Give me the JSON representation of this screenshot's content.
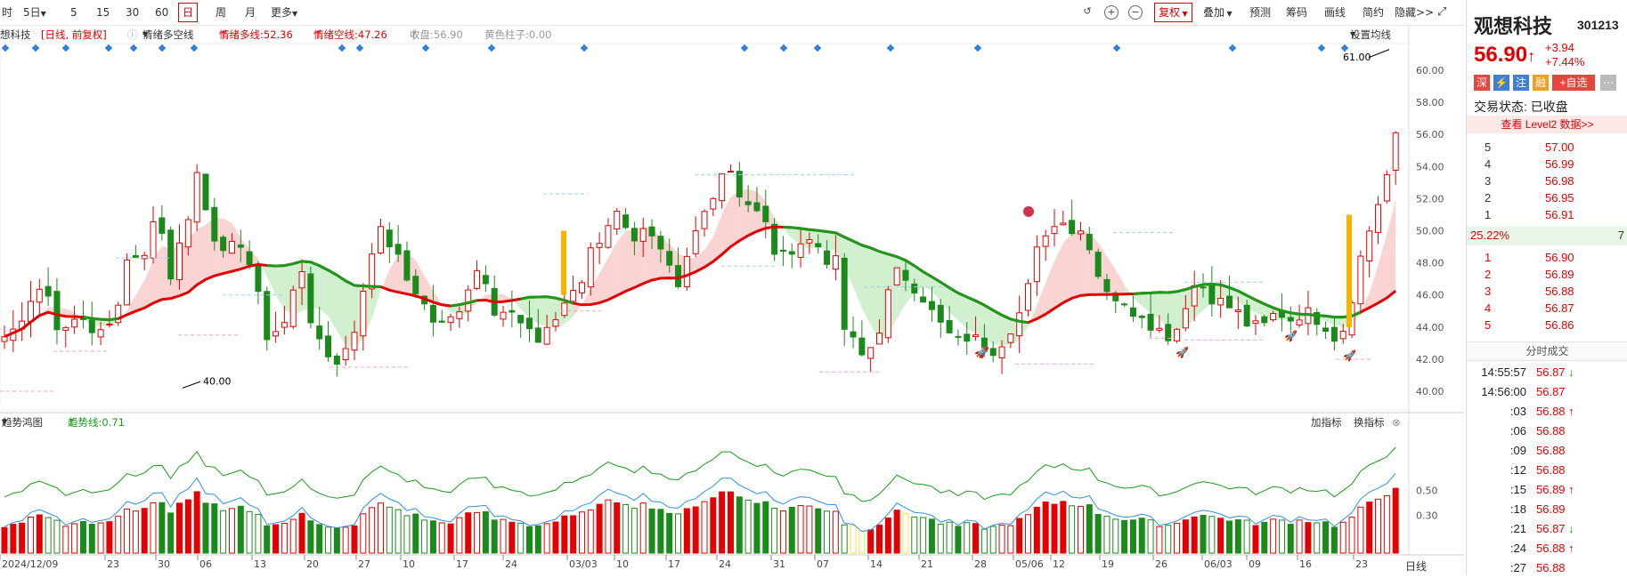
{
  "toolbar": {
    "period_left": [
      "时",
      "5日",
      "5",
      "15",
      "30",
      "60",
      "日",
      "周",
      "月",
      "更多"
    ],
    "right": [
      "复权",
      "叠加",
      "预测",
      "筹码",
      "画线",
      "简约",
      "隐藏>>"
    ]
  },
  "indicator_bar": {
    "stock": "想科技",
    "mode": "[日线, 前复权]",
    "ind_name": "情绪多空线",
    "multi": "情绪多线:52.36",
    "short": "情绪空线:47.26",
    "close": "收盘:56.90",
    "yellow": "黄色柱子:0.00",
    "set_ma": "设置均线"
  },
  "sub_panel": {
    "name": "趋势鸿图",
    "trend": "趋势线:0.71",
    "add": "加指标",
    "swap": "换指标"
  },
  "main_axis": [
    "60.00",
    "58.00",
    "56.00",
    "54.00",
    "52.00",
    "50.00",
    "48.00",
    "46.00",
    "44.00",
    "42.00",
    "40.00"
  ],
  "sub_axis": [
    "0.50",
    "0.30"
  ],
  "annotations": {
    "high": "61.00",
    "low": "40.00"
  },
  "dates": [
    "2024/12/09",
    "23",
    "30",
    "06",
    "13",
    "20",
    "27",
    "10",
    "17",
    "24",
    "03/03",
    "10",
    "17",
    "24",
    "31",
    "07",
    "14",
    "21",
    "28",
    "05/06",
    "12",
    "19",
    "26",
    "06/03",
    "09",
    "16",
    "23"
  ],
  "bottom_label": "日线",
  "sidebar": {
    "name": "观想科技",
    "code": "301213",
    "price": "56.90",
    "price_arrow": "↑",
    "change": "+3.94",
    "change_pct": "+7.44%",
    "badges": [
      "深",
      "⚡",
      "注",
      "融",
      "+自选"
    ],
    "status": "交易状态: 已收盘",
    "level2": "查看 Level2 数据>>",
    "asks": [
      {
        "lvl": "5",
        "px": "57.00"
      },
      {
        "lvl": "4",
        "px": "56.99"
      },
      {
        "lvl": "3",
        "px": "56.98"
      },
      {
        "lvl": "2",
        "px": "56.95"
      },
      {
        "lvl": "1",
        "px": "56.91"
      }
    ],
    "ratio": "25.22%",
    "ratio_right": "7",
    "bids": [
      {
        "lvl": "1",
        "px": "56.90"
      },
      {
        "lvl": "2",
        "px": "56.89"
      },
      {
        "lvl": "3",
        "px": "56.88"
      },
      {
        "lvl": "4",
        "px": "56.87"
      },
      {
        "lvl": "5",
        "px": "56.86"
      }
    ],
    "ticks_title": "分时成交",
    "ticks": [
      {
        "t": "14:55:57",
        "p": "56.87",
        "d": "↓"
      },
      {
        "t": "14:56:00",
        "p": "56.87",
        "d": ""
      },
      {
        "t": ":03",
        "p": "56.88",
        "d": "↑"
      },
      {
        "t": ":06",
        "p": "56.88",
        "d": ""
      },
      {
        "t": ":09",
        "p": "56.88",
        "d": ""
      },
      {
        "t": ":12",
        "p": "56.88",
        "d": ""
      },
      {
        "t": ":15",
        "p": "56.89",
        "d": "↑"
      },
      {
        "t": ":18",
        "p": "56.89",
        "d": ""
      },
      {
        "t": ":21",
        "p": "56.87",
        "d": "↓"
      },
      {
        "t": ":24",
        "p": "56.88",
        "d": "↑"
      },
      {
        "t": ":27",
        "p": "56.88",
        "d": ""
      }
    ]
  },
  "chart_data": {
    "type": "candlestick",
    "ylim": [
      39,
      61.5
    ],
    "n": 160,
    "close_path": [
      [
        0,
        43.2
      ],
      [
        10,
        44
      ],
      [
        16,
        45.5
      ],
      [
        22,
        46.5
      ],
      [
        28,
        46
      ],
      [
        34,
        44
      ],
      [
        40,
        43.5
      ],
      [
        46,
        45
      ],
      [
        52,
        44
      ],
      [
        58,
        43.5
      ],
      [
        64,
        44
      ],
      [
        70,
        46
      ],
      [
        76,
        49
      ],
      [
        84,
        48
      ],
      [
        90,
        51
      ],
      [
        96,
        49.5
      ],
      [
        100,
        47
      ],
      [
        104,
        49.2
      ],
      [
        110,
        51
      ],
      [
        116,
        53.5
      ],
      [
        122,
        50
      ],
      [
        128,
        49.5
      ],
      [
        134,
        48
      ],
      [
        138,
        50
      ],
      [
        144,
        48.5
      ],
      [
        150,
        47
      ],
      [
        156,
        43
      ],
      [
        162,
        44
      ],
      [
        170,
        45
      ],
      [
        176,
        48
      ],
      [
        182,
        44.5
      ],
      [
        188,
        43
      ],
      [
        194,
        42
      ],
      [
        200,
        42
      ],
      [
        206,
        43
      ],
      [
        212,
        46
      ],
      [
        218,
        49
      ],
      [
        222,
        50
      ],
      [
        230,
        49
      ],
      [
        238,
        47
      ],
      [
        246,
        46
      ],
      [
        252,
        44.5
      ],
      [
        260,
        44
      ],
      [
        268,
        45
      ],
      [
        276,
        47
      ],
      [
        282,
        48
      ],
      [
        290,
        45
      ],
      [
        298,
        45
      ],
      [
        306,
        44
      ],
      [
        314,
        43
      ],
      [
        320,
        44
      ],
      [
        326,
        44.5
      ],
      [
        330,
        45.5
      ],
      [
        336,
        46
      ],
      [
        342,
        47
      ],
      [
        346,
        49
      ],
      [
        352,
        49.5
      ],
      [
        358,
        51
      ],
      [
        364,
        51
      ],
      [
        372,
        49.5
      ],
      [
        378,
        50
      ],
      [
        384,
        49
      ],
      [
        392,
        47.5
      ],
      [
        398,
        46
      ],
      [
        404,
        49
      ],
      [
        412,
        51
      ],
      [
        420,
        53
      ],
      [
        426,
        54.5
      ],
      [
        432,
        52.5
      ],
      [
        440,
        51.5
      ],
      [
        448,
        50.5
      ],
      [
        456,
        48
      ],
      [
        464,
        49
      ],
      [
        472,
        49.5
      ],
      [
        480,
        49
      ],
      [
        486,
        48
      ],
      [
        490,
        48
      ],
      [
        494,
        44
      ],
      [
        500,
        43
      ],
      [
        506,
        42
      ],
      [
        514,
        43.5
      ],
      [
        520,
        46
      ],
      [
        526,
        47.5
      ],
      [
        532,
        47
      ],
      [
        540,
        46
      ],
      [
        548,
        44.5
      ],
      [
        556,
        43.5
      ],
      [
        562,
        43
      ],
      [
        568,
        43.5
      ],
      [
        574,
        43
      ],
      [
        580,
        42.5
      ],
      [
        586,
        43
      ],
      [
        592,
        44
      ],
      [
        598,
        45
      ],
      [
        604,
        47
      ],
      [
        610,
        50
      ],
      [
        616,
        50
      ],
      [
        622,
        51
      ],
      [
        628,
        50
      ],
      [
        636,
        50
      ],
      [
        644,
        47
      ],
      [
        652,
        46
      ],
      [
        660,
        45
      ],
      [
        668,
        45
      ],
      [
        676,
        44
      ],
      [
        684,
        43.5
      ],
      [
        690,
        44
      ],
      [
        696,
        46
      ],
      [
        702,
        47
      ],
      [
        708,
        46
      ],
      [
        716,
        45.5
      ],
      [
        724,
        45
      ],
      [
        732,
        44
      ],
      [
        740,
        44
      ],
      [
        748,
        45
      ],
      [
        756,
        44.5
      ],
      [
        764,
        45
      ],
      [
        772,
        44.5
      ],
      [
        778,
        44
      ],
      [
        784,
        43
      ],
      [
        790,
        45
      ],
      [
        796,
        48
      ],
      [
        802,
        50
      ],
      [
        808,
        52
      ],
      [
        814,
        54
      ],
      [
        820,
        57
      ]
    ],
    "dates": [
      "2024/12/09",
      "23",
      "30",
      "06",
      "13",
      "20",
      "27",
      "10",
      "17",
      "24",
      "03/03",
      "10",
      "17",
      "24",
      "31",
      "07",
      "14",
      "21",
      "28",
      "05/06",
      "12",
      "19",
      "26",
      "06/03",
      "09",
      "16",
      "23"
    ]
  }
}
